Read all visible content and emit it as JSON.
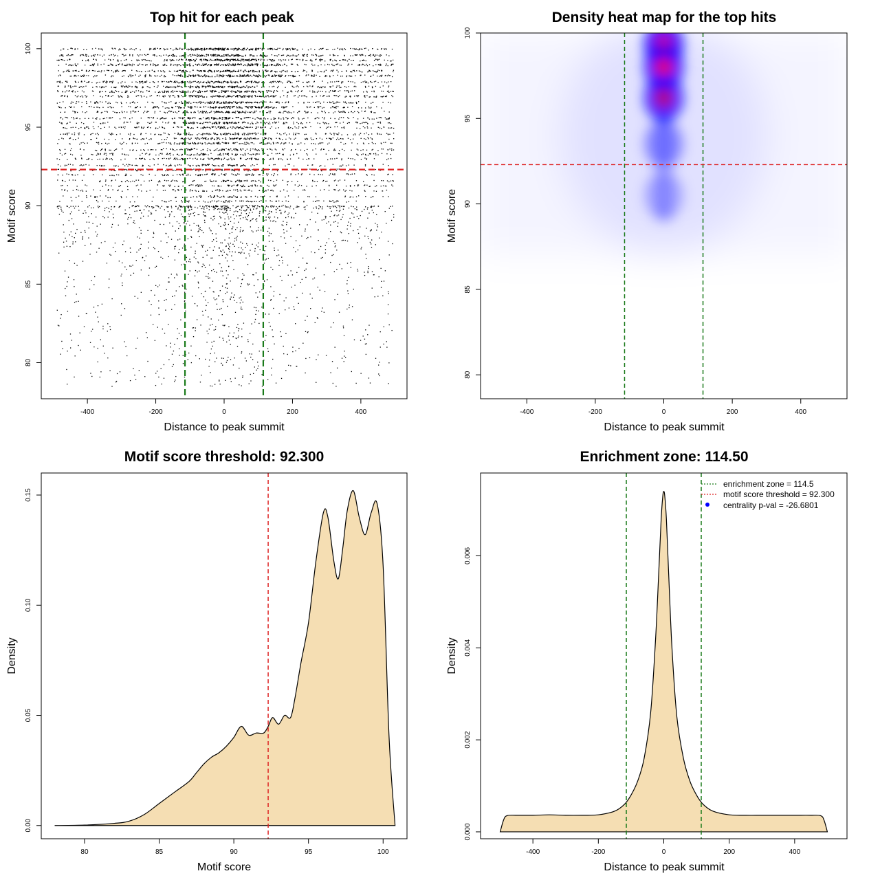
{
  "colors": {
    "background": "#ffffff",
    "frame": "#000000",
    "enrichment_line": "#1a7a1a",
    "threshold_line": "#dd2222",
    "density_fill": "#f5deb3",
    "heat_low": "#ffffff",
    "heat_mid": "#0000ff",
    "heat_high": "#ff0000",
    "legend_point": "#0000ff"
  },
  "chart_data": [
    {
      "type": "scatter",
      "title": "Top hit for each peak",
      "xlabel": "Distance to peak summit",
      "ylabel": "Motif score",
      "xlim": [
        -535,
        535
      ],
      "ylim": [
        77.7,
        101.0
      ],
      "xticks": [
        -400,
        -200,
        0,
        200,
        400
      ],
      "yticks": [
        80,
        85,
        90,
        95,
        100
      ],
      "x_range": [
        -490,
        495
      ],
      "y_range": [
        78.5,
        100
      ],
      "dense_score_levels": [
        100.0,
        99.6,
        99.3,
        99.0,
        98.6,
        98.3,
        97.9,
        97.6,
        97.3,
        97.0,
        96.6,
        96.3,
        96.0,
        95.6,
        95.3,
        95.0,
        94.6,
        94.3,
        94.0,
        93.6,
        93.3,
        93.0,
        92.6,
        92.3,
        92.0,
        91.6,
        91.3,
        91.0,
        90.6,
        90.3,
        90.0
      ],
      "vlines": [
        -114.5,
        114.5
      ],
      "hline": 92.3,
      "grid": false,
      "legend": "none"
    },
    {
      "type": "heatmap",
      "title": "Density heat map for the top hits",
      "xlabel": "Distance to peak summit",
      "ylabel": "Motif score",
      "xlim": [
        -535,
        535
      ],
      "ylim": [
        78.6,
        100.0
      ],
      "xticks": [
        -400,
        -200,
        0,
        200,
        400
      ],
      "yticks": [
        80,
        85,
        90,
        95,
        100
      ],
      "hotspots": [
        {
          "x": 0,
          "y": 99.3,
          "intensity": 1.0
        },
        {
          "x": 0,
          "y": 98.0,
          "intensity": 0.95
        },
        {
          "x": 0,
          "y": 96.2,
          "intensity": 0.9
        },
        {
          "x": 0,
          "y": 93.5,
          "intensity": 0.45
        },
        {
          "x": 0,
          "y": 90.5,
          "intensity": 0.3
        }
      ],
      "vlines": [
        -114.5,
        114.5
      ],
      "hline": 92.3,
      "grid": false,
      "legend": "none"
    },
    {
      "type": "area",
      "title": "Motif score threshold: 92.300",
      "xlabel": "Motif score",
      "ylabel": "Density",
      "xlim": [
        77.1,
        101.6
      ],
      "ylim": [
        -0.006,
        0.16
      ],
      "xticks": [
        80,
        85,
        90,
        95,
        100
      ],
      "yticks": [
        0.0,
        0.05,
        0.1,
        0.15
      ],
      "ytick_labels": [
        "0.00",
        "0.05",
        "0.10",
        "0.15"
      ],
      "x": [
        78,
        80,
        82,
        83,
        84,
        85,
        86,
        87,
        87.5,
        88,
        88.5,
        89,
        89.5,
        90,
        90.5,
        91,
        91.5,
        92,
        92.3,
        92.6,
        93,
        93.4,
        93.8,
        94.1,
        94.5,
        95,
        95.5,
        96,
        96.3,
        96.7,
        97,
        97.3,
        97.6,
        98,
        98.4,
        98.8,
        99.2,
        99.6,
        100,
        100.4,
        100.8
      ],
      "y": [
        0,
        0.0002,
        0.001,
        0.002,
        0.005,
        0.01,
        0.015,
        0.02,
        0.024,
        0.028,
        0.031,
        0.033,
        0.036,
        0.04,
        0.045,
        0.041,
        0.042,
        0.042,
        0.045,
        0.049,
        0.046,
        0.05,
        0.049,
        0.058,
        0.074,
        0.092,
        0.12,
        0.142,
        0.14,
        0.12,
        0.112,
        0.126,
        0.143,
        0.152,
        0.14,
        0.132,
        0.142,
        0.146,
        0.118,
        0.04,
        0
      ],
      "vline": 92.3,
      "grid": false,
      "legend": "none"
    },
    {
      "type": "area",
      "title": "Enrichment zone: 114.50",
      "xlabel": "Distance to peak summit",
      "ylabel": "Density",
      "xlim": [
        -560,
        560
      ],
      "ylim": [
        -0.00015,
        0.0078
      ],
      "xticks": [
        -400,
        -200,
        0,
        200,
        400
      ],
      "yticks": [
        0.0,
        0.002,
        0.004,
        0.006
      ],
      "ytick_labels": [
        "0.000",
        "0.002",
        "0.004",
        "0.006"
      ],
      "x": [
        -500,
        -490,
        -480,
        -450,
        -400,
        -350,
        -300,
        -250,
        -200,
        -150,
        -120,
        -100,
        -80,
        -60,
        -40,
        -25,
        -15,
        -8,
        -3,
        0,
        3,
        8,
        15,
        25,
        40,
        60,
        80,
        100,
        120,
        150,
        200,
        250,
        300,
        350,
        400,
        450,
        480,
        490,
        500
      ],
      "y": [
        0,
        0.00025,
        0.00035,
        0.00036,
        0.00036,
        0.00037,
        0.00036,
        0.00036,
        0.00037,
        0.00045,
        0.0006,
        0.0008,
        0.0011,
        0.0016,
        0.0026,
        0.0042,
        0.0057,
        0.0068,
        0.0073,
        0.0074,
        0.0073,
        0.0068,
        0.0056,
        0.004,
        0.0025,
        0.0016,
        0.0011,
        0.0008,
        0.0006,
        0.00045,
        0.00037,
        0.00036,
        0.00036,
        0.00036,
        0.00036,
        0.00036,
        0.00035,
        0.00025,
        0
      ],
      "vlines": [
        -114.5,
        114.5
      ],
      "legend_position": "top-right",
      "legend_entries": [
        "enrichment zone = 114.5",
        "motif score threshold = 92.300",
        "centrality p-val = -26.6801"
      ],
      "grid": false
    }
  ]
}
